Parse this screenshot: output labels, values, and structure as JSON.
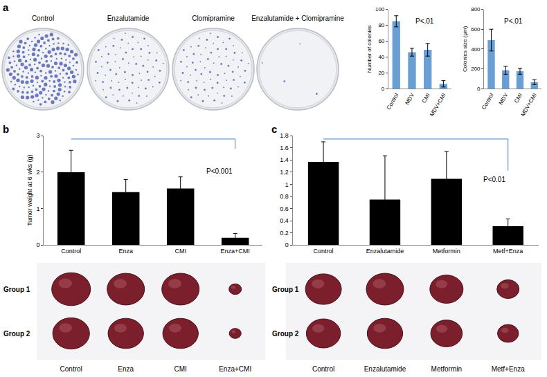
{
  "chart_data": [
    {
      "type": "bar",
      "categories": [
        "Control",
        "MDV",
        "CMI",
        "MDV+CMI"
      ],
      "values": [
        85,
        46,
        49,
        6
      ],
      "errors": [
        7,
        5,
        8,
        4
      ],
      "color": "#6a9fd4",
      "ylabel": "Number of colonies",
      "annotation": "P<.01",
      "ylim": [
        0,
        100
      ],
      "yticks": [
        0,
        20,
        40,
        60,
        80,
        100
      ],
      "grid": false
    },
    {
      "type": "bar",
      "categories": [
        "Control",
        "MDV",
        "CMI",
        "MDV+CMI"
      ],
      "values": [
        490,
        185,
        175,
        65
      ],
      "errors": [
        110,
        40,
        30,
        25
      ],
      "color": "#6a9fd4",
      "ylabel": "Colonies size (μm)",
      "annotation": "P<.01",
      "ylim": [
        0,
        800
      ],
      "yticks": [
        0,
        200,
        400,
        600,
        800
      ],
      "grid": false
    },
    {
      "type": "bar",
      "categories": [
        "Control",
        "Enza",
        "CMI",
        "Enza+CMI"
      ],
      "values": [
        2.0,
        1.45,
        1.55,
        0.2
      ],
      "errors": [
        0.6,
        0.35,
        0.32,
        0.12
      ],
      "color": "#000000",
      "ylabel": "Tumor weight at 6 wks (g)",
      "annotation": "P<0.001",
      "ylim": [
        0,
        3
      ],
      "yticks": [
        0,
        1,
        2,
        3
      ],
      "grid": false
    },
    {
      "type": "bar",
      "categories": [
        "Control",
        "Enzalutamide",
        "Metformin",
        "Metf+Enza"
      ],
      "values": [
        1.37,
        0.75,
        1.09,
        0.31
      ],
      "errors": [
        0.33,
        0.72,
        0.45,
        0.12
      ],
      "color": "#000000",
      "annotation": "P<0.01",
      "ylim": [
        0,
        1.8
      ],
      "yticks": [
        0,
        0.2,
        0.4,
        0.6,
        0.8,
        1,
        1.2,
        1.4,
        1.6,
        1.8
      ],
      "grid": false
    }
  ],
  "panel_labels": [
    "a",
    "b",
    "c"
  ],
  "photos": {
    "a": {
      "labels": [
        "Control",
        "Enzalutamide",
        "Clomipramine",
        "Enzalutamide + Clomipramine"
      ]
    },
    "b": {
      "rows": [
        "Group 1",
        "Group 2"
      ],
      "labels": [
        "Control",
        "Enza",
        "CMI",
        "Enza+CMI"
      ]
    },
    "c": {
      "rows": [
        "Group 1",
        "Group 2"
      ],
      "labels": [
        "Control",
        "Enzalutamide",
        "Metformin",
        "Metf+Enza"
      ]
    }
  }
}
